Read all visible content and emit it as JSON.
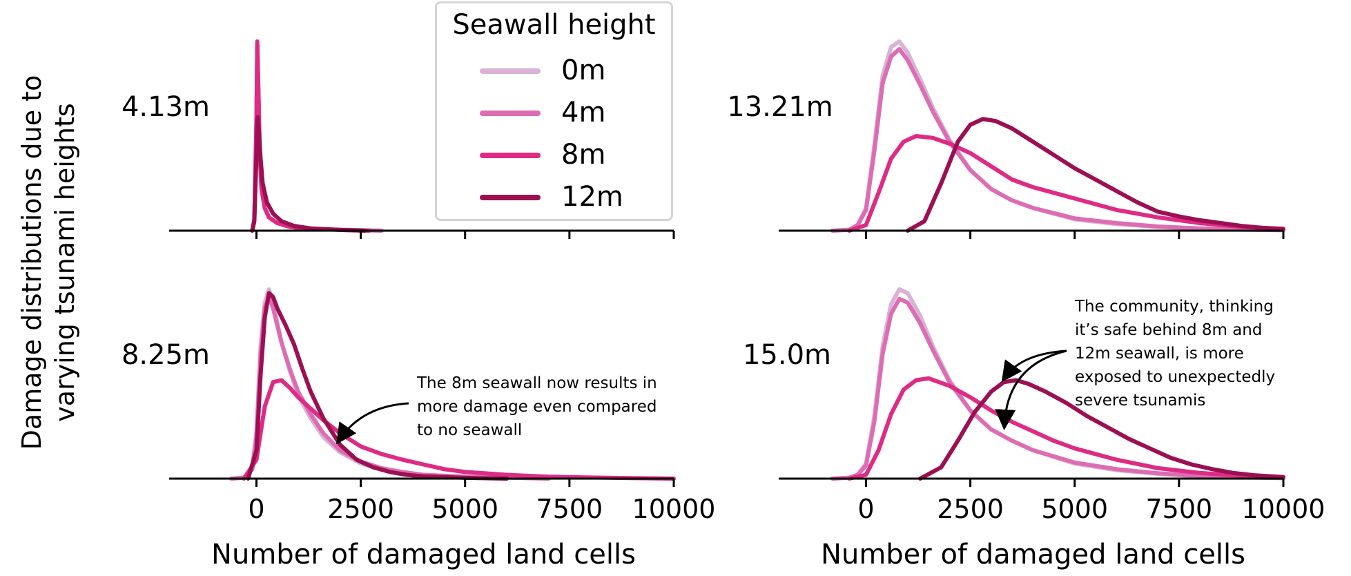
{
  "y_axis_title": [
    "Damage distributions due to",
    "varying tsunami heights"
  ],
  "legend": {
    "title": "Seawall height",
    "entries": [
      {
        "label": "0m",
        "color": "#d9b2d6"
      },
      {
        "label": "4m",
        "color": "#dd6db3"
      },
      {
        "label": "8m",
        "color": "#de2b84"
      },
      {
        "label": "12m",
        "color": "#9c0f52"
      }
    ]
  },
  "annotations": [
    {
      "text_lines": [
        "The 8m seawall now results in",
        "more damage even compared",
        "to no seawall"
      ]
    },
    {
      "text_lines": [
        "The community, thinking",
        "it’s safe behind 8m and",
        "12m seawall, is more",
        "exposed to unexpectedly",
        "severe tsunamis"
      ]
    }
  ],
  "chart_data": [
    {
      "type": "line",
      "title": "4.13m",
      "xlabel": "",
      "xlim": [
        -1000,
        10000
      ],
      "xticks": [
        0,
        2500,
        5000,
        7500,
        10000
      ],
      "xtick_labels_visible": false,
      "ylim": [
        0,
        1
      ],
      "series": [
        {
          "name": "0m",
          "color": "#d9b2d6",
          "x": [
            -100,
            -50,
            0,
            20,
            50,
            80,
            120,
            200,
            300,
            500,
            800,
            1200,
            2000,
            3000
          ],
          "y": [
            0,
            0.05,
            0.55,
            0.98,
            0.7,
            0.4,
            0.22,
            0.12,
            0.07,
            0.04,
            0.02,
            0.01,
            0.005,
            0
          ]
        },
        {
          "name": "4m",
          "color": "#dd6db3",
          "x": [
            -100,
            -50,
            0,
            20,
            50,
            80,
            120,
            200,
            300,
            500,
            800,
            1200,
            2000,
            3000
          ],
          "y": [
            0,
            0.05,
            0.55,
            0.98,
            0.7,
            0.4,
            0.22,
            0.12,
            0.07,
            0.04,
            0.02,
            0.01,
            0.005,
            0
          ]
        },
        {
          "name": "8m",
          "color": "#de2b84",
          "x": [
            -100,
            -50,
            0,
            20,
            50,
            80,
            120,
            200,
            300,
            500,
            800,
            1200,
            2000,
            2700
          ],
          "y": [
            0,
            0.06,
            0.6,
            1.0,
            0.72,
            0.42,
            0.23,
            0.12,
            0.07,
            0.04,
            0.02,
            0.01,
            0.004,
            0
          ]
        },
        {
          "name": "12m",
          "color": "#9c0f52",
          "x": [
            -100,
            -50,
            0,
            30,
            60,
            100,
            150,
            250,
            400,
            600,
            900,
            1300,
            2000,
            2600
          ],
          "y": [
            0,
            0.05,
            0.4,
            0.6,
            0.52,
            0.38,
            0.25,
            0.15,
            0.09,
            0.05,
            0.025,
            0.012,
            0.004,
            0
          ]
        }
      ]
    },
    {
      "type": "line",
      "title": "13.21m",
      "xlabel": "",
      "xlim": [
        -1000,
        10000
      ],
      "xticks": [
        0,
        2500,
        5000,
        7500,
        10000
      ],
      "xtick_labels_visible": false,
      "ylim": [
        0,
        1
      ],
      "series": [
        {
          "name": "0m",
          "color": "#d9b2d6",
          "x": [
            -800,
            -400,
            -200,
            0,
            200,
            400,
            600,
            800,
            1000,
            1300,
            1600,
            2000,
            2500,
            3000,
            3500,
            4000,
            5000,
            6000,
            7000,
            8000,
            9000,
            10000
          ],
          "y": [
            0,
            0.005,
            0.03,
            0.12,
            0.45,
            0.82,
            0.97,
            1.0,
            0.94,
            0.8,
            0.65,
            0.48,
            0.32,
            0.22,
            0.16,
            0.12,
            0.06,
            0.035,
            0.02,
            0.01,
            0.005,
            0.003
          ]
        },
        {
          "name": "4m",
          "color": "#dd6db3",
          "x": [
            -800,
            -400,
            -200,
            0,
            200,
            400,
            600,
            800,
            1000,
            1300,
            1600,
            2000,
            2500,
            3000,
            3500,
            4000,
            5000,
            6000,
            7000,
            8000,
            9000,
            10000
          ],
          "y": [
            0,
            0.005,
            0.03,
            0.11,
            0.42,
            0.78,
            0.92,
            0.96,
            0.9,
            0.77,
            0.63,
            0.47,
            0.32,
            0.22,
            0.16,
            0.12,
            0.065,
            0.04,
            0.022,
            0.012,
            0.006,
            0.003
          ]
        },
        {
          "name": "8m",
          "color": "#de2b84",
          "x": [
            -400,
            0,
            300,
            600,
            900,
            1200,
            1600,
            2000,
            2500,
            3000,
            3500,
            4000,
            5000,
            6000,
            7000,
            8000,
            9000,
            10000
          ],
          "y": [
            0,
            0.03,
            0.2,
            0.38,
            0.47,
            0.5,
            0.49,
            0.46,
            0.41,
            0.34,
            0.27,
            0.23,
            0.17,
            0.11,
            0.07,
            0.04,
            0.02,
            0.01
          ]
        },
        {
          "name": "12m",
          "color": "#9c0f52",
          "x": [
            1000,
            1400,
            1800,
            2200,
            2500,
            2800,
            3100,
            3500,
            4000,
            4500,
            5000,
            5500,
            6000,
            6500,
            7000,
            7500,
            8000,
            8500,
            9000,
            9500,
            10000
          ],
          "y": [
            0,
            0.05,
            0.25,
            0.47,
            0.56,
            0.59,
            0.58,
            0.54,
            0.47,
            0.4,
            0.33,
            0.27,
            0.21,
            0.15,
            0.1,
            0.075,
            0.055,
            0.04,
            0.025,
            0.015,
            0.008
          ]
        }
      ]
    },
    {
      "type": "line",
      "title": "8.25m",
      "xlabel": "Number of damaged land cells",
      "xlim": [
        -1000,
        10000
      ],
      "xticks": [
        0,
        2500,
        5000,
        7500,
        10000
      ],
      "xtick_labels_visible": true,
      "ylim": [
        0,
        1
      ],
      "series": [
        {
          "name": "0m",
          "color": "#d9b2d6",
          "x": [
            -600,
            -300,
            -100,
            0,
            100,
            200,
            300,
            400,
            600,
            800,
            1000,
            1300,
            1600,
            2000,
            2500,
            3000,
            3500,
            4000,
            5000,
            6000,
            7000
          ],
          "y": [
            0,
            0.005,
            0.06,
            0.25,
            0.7,
            0.93,
            1.0,
            0.93,
            0.72,
            0.57,
            0.44,
            0.32,
            0.22,
            0.14,
            0.08,
            0.05,
            0.03,
            0.02,
            0.01,
            0.005,
            0
          ]
        },
        {
          "name": "4m",
          "color": "#dd6db3",
          "x": [
            -600,
            -300,
            -100,
            0,
            100,
            200,
            300,
            400,
            600,
            800,
            1000,
            1300,
            1600,
            2000,
            2500,
            3000,
            3500,
            4000,
            5000,
            6000,
            7000
          ],
          "y": [
            0,
            0.005,
            0.05,
            0.22,
            0.65,
            0.9,
            0.96,
            0.9,
            0.72,
            0.58,
            0.46,
            0.34,
            0.24,
            0.15,
            0.09,
            0.055,
            0.035,
            0.02,
            0.01,
            0.005,
            0
          ]
        },
        {
          "name": "8m",
          "color": "#de2b84",
          "x": [
            -300,
            0,
            200,
            400,
            600,
            800,
            1000,
            1300,
            1600,
            2000,
            2500,
            3000,
            3500,
            4000,
            4500,
            5000,
            6000,
            7000,
            8000,
            9000,
            10000
          ],
          "y": [
            0,
            0.1,
            0.38,
            0.51,
            0.52,
            0.48,
            0.43,
            0.37,
            0.31,
            0.24,
            0.17,
            0.13,
            0.1,
            0.075,
            0.05,
            0.035,
            0.02,
            0.01,
            0.006,
            0.003,
            0
          ]
        },
        {
          "name": "12m",
          "color": "#9c0f52",
          "x": [
            -200,
            0,
            100,
            200,
            300,
            400,
            500,
            700,
            900,
            1100,
            1300,
            1600,
            2000,
            2400,
            2800,
            3200,
            3600,
            4000,
            5000,
            6000
          ],
          "y": [
            0,
            0.15,
            0.55,
            0.85,
            0.98,
            0.96,
            0.9,
            0.81,
            0.71,
            0.58,
            0.46,
            0.32,
            0.18,
            0.1,
            0.06,
            0.035,
            0.02,
            0.012,
            0.004,
            0
          ]
        }
      ]
    },
    {
      "type": "line",
      "title": "15.0m",
      "xlabel": "Number of damaged land cells",
      "xlim": [
        -1000,
        10000
      ],
      "xticks": [
        0,
        2500,
        5000,
        7500,
        10000
      ],
      "xtick_labels_visible": true,
      "ylim": [
        0,
        1
      ],
      "series": [
        {
          "name": "0m",
          "color": "#d9b2d6",
          "x": [
            -800,
            -400,
            -200,
            0,
            200,
            400,
            600,
            800,
            1000,
            1300,
            1600,
            2000,
            2500,
            3000,
            3500,
            4000,
            5000,
            6000,
            7000,
            8000,
            9000,
            10000
          ],
          "y": [
            0,
            0.005,
            0.02,
            0.08,
            0.33,
            0.7,
            0.92,
            1.0,
            0.98,
            0.86,
            0.7,
            0.52,
            0.36,
            0.26,
            0.2,
            0.15,
            0.08,
            0.045,
            0.025,
            0.012,
            0.006,
            0.003
          ]
        },
        {
          "name": "4m",
          "color": "#dd6db3",
          "x": [
            -800,
            -400,
            -200,
            0,
            200,
            400,
            600,
            800,
            1000,
            1300,
            1600,
            2000,
            2500,
            3000,
            3500,
            4000,
            5000,
            6000,
            7000,
            8000,
            9000,
            10000
          ],
          "y": [
            0,
            0.005,
            0.02,
            0.07,
            0.3,
            0.66,
            0.87,
            0.95,
            0.93,
            0.82,
            0.68,
            0.51,
            0.36,
            0.26,
            0.2,
            0.15,
            0.085,
            0.05,
            0.028,
            0.014,
            0.007,
            0.003
          ]
        },
        {
          "name": "8m",
          "color": "#de2b84",
          "x": [
            -400,
            0,
            300,
            600,
            900,
            1200,
            1500,
            2000,
            2500,
            3000,
            3500,
            4000,
            4500,
            5000,
            6000,
            7000,
            8000,
            9000,
            10000
          ],
          "y": [
            0,
            0.02,
            0.15,
            0.34,
            0.47,
            0.52,
            0.53,
            0.49,
            0.43,
            0.36,
            0.3,
            0.25,
            0.2,
            0.16,
            0.1,
            0.055,
            0.03,
            0.015,
            0.007
          ]
        },
        {
          "name": "12m",
          "color": "#9c0f52",
          "x": [
            1300,
            1800,
            2200,
            2600,
            3000,
            3300,
            3600,
            3900,
            4300,
            4800,
            5300,
            5800,
            6300,
            6800,
            7300,
            7800,
            8300,
            8800,
            9300,
            10000
          ],
          "y": [
            0,
            0.06,
            0.2,
            0.35,
            0.46,
            0.51,
            0.52,
            0.5,
            0.46,
            0.4,
            0.33,
            0.27,
            0.21,
            0.16,
            0.11,
            0.075,
            0.05,
            0.03,
            0.018,
            0.008
          ]
        }
      ]
    }
  ]
}
